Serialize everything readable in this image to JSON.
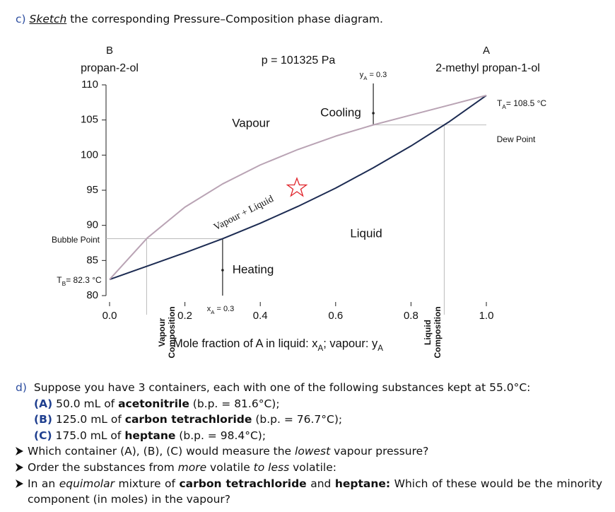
{
  "question_c": {
    "label": "c)",
    "runs": [
      {
        "text": "Sketch",
        "style": "italic-underline"
      },
      {
        "text": " the corresponding Pressure–Composition phase diagram.",
        "style": "normal"
      }
    ]
  },
  "chart_data": {
    "type": "line",
    "title": "p = 101325 Pa",
    "xlabel": [
      {
        "text": "Mole fraction of A in liquid: x",
        "style": "normal"
      },
      {
        "text": "A",
        "style": "sub"
      },
      {
        "text": "; vapour: y",
        "style": "normal"
      },
      {
        "text": "A",
        "style": "sub"
      }
    ],
    "x": [
      0,
      0.1,
      0.2,
      0.3,
      0.4,
      0.5,
      0.6,
      0.7,
      0.8,
      0.9,
      1
    ],
    "series": [
      {
        "color": "#1c2b52",
        "values": [
          82.3,
          84.2,
          86.1,
          88.1,
          90.3,
          92.7,
          95.3,
          98.2,
          101.3,
          104.7,
          108.5
        ]
      },
      {
        "color": "#b9a3b4",
        "values": [
          82.3,
          88.2,
          92.6,
          95.9,
          98.6,
          100.8,
          102.7,
          104.3,
          105.7,
          107.1,
          108.5
        ]
      }
    ],
    "xlim": [
      0,
      1
    ],
    "ylim": [
      80,
      110
    ],
    "xticks": [
      {
        "value": 0,
        "label": "0.0"
      },
      0.2,
      0.4,
      0.6,
      0.8,
      {
        "value": 1,
        "label": "1.0"
      }
    ],
    "yticks": [
      80,
      85,
      90,
      95,
      100,
      105,
      110
    ],
    "annotations": {
      "component_b": "B",
      "component_b_name": "propan-2-ol",
      "component_a": "A",
      "component_a_name": "2-methyl propan-1-ol",
      "vapour": "Vapour",
      "cooling": "Cooling",
      "vapour_liquid": "Vapour + Liquid",
      "liquid": "Liquid",
      "heating": "Heating",
      "bubble_point": "Bubble Point",
      "dew_point": "Dew Point",
      "t_b": [
        {
          "text": "T",
          "style": "normal"
        },
        {
          "text": "B",
          "style": "sub"
        },
        {
          "text": "= 82.3 °C",
          "style": "normal"
        }
      ],
      "t_a": [
        {
          "text": "T",
          "style": "normal"
        },
        {
          "text": "A",
          "style": "sub"
        },
        {
          "text": "= 108.5 °C",
          "style": "normal"
        }
      ],
      "x_a": [
        {
          "text": "x",
          "style": "normal"
        },
        {
          "text": "A",
          "style": "sub"
        },
        {
          "text": " = 0.3",
          "style": "normal"
        }
      ],
      "y_a": [
        {
          "text": "y",
          "style": "normal"
        },
        {
          "text": "A",
          "style": "sub"
        },
        {
          "text": " = 0.3",
          "style": "normal"
        }
      ],
      "vapour_composition": [
        "Vapour",
        "Composition"
      ],
      "liquid_composition": [
        "Liquid",
        "Composition"
      ]
    }
  },
  "question_d": {
    "label": "d)",
    "runs": [
      {
        "text": "Suppose you have 3 containers, each with one of the following substances kept at 55.0°C:",
        "style": "normal"
      }
    ],
    "items": [
      [
        {
          "text": "(A)",
          "style": "blue"
        },
        {
          "text": " 50.0 mL of ",
          "style": "normal"
        },
        {
          "text": "acetonitrile",
          "style": "bold"
        },
        {
          "text": " (b.p. = 81.6°C);",
          "style": "normal"
        }
      ],
      [
        {
          "text": "(B)",
          "style": "blue"
        },
        {
          "text": " 125.0 mL of ",
          "style": "normal"
        },
        {
          "text": "carbon tetrachloride",
          "style": "bold"
        },
        {
          "text": " (b.p. = 76.7°C);",
          "style": "normal"
        }
      ],
      [
        {
          "text": "(C)",
          "style": "blue"
        },
        {
          "text": " 175.0 mL of ",
          "style": "normal"
        },
        {
          "text": "heptane",
          "style": "bold"
        },
        {
          "text": " (b.p. = 98.4°C);",
          "style": "normal"
        }
      ]
    ],
    "bullets": [
      [
        {
          "text": "Which container (A), (B), (C) would measure the ",
          "style": "normal"
        },
        {
          "text": "lowest",
          "style": "italic"
        },
        {
          "text": " vapour pressure?",
          "style": "normal"
        }
      ],
      [
        {
          "text": "Order the substances from ",
          "style": "normal"
        },
        {
          "text": "more",
          "style": "italic"
        },
        {
          "text": " volatile ",
          "style": "normal"
        },
        {
          "text": "to less",
          "style": "italic"
        },
        {
          "text": " volatile:",
          "style": "normal"
        }
      ],
      [
        {
          "text": "In an ",
          "style": "normal"
        },
        {
          "text": "equimolar",
          "style": "italic"
        },
        {
          "text": " mixture of ",
          "style": "normal"
        },
        {
          "text": "carbon tetrachloride",
          "style": "bold"
        },
        {
          "text": " and ",
          "style": "normal"
        },
        {
          "text": "heptane:",
          "style": "bold"
        },
        {
          "text": " Which of these would be the minority component (in moles) in the vapour?",
          "style": "normal"
        }
      ]
    ]
  }
}
